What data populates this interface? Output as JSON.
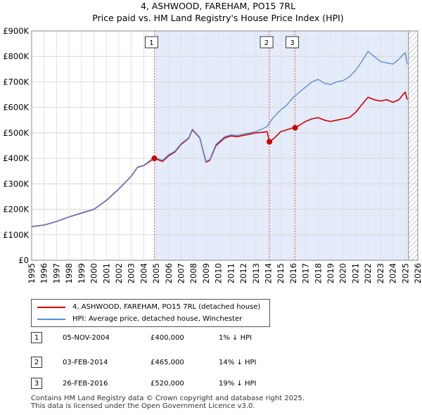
{
  "chart_data": {
    "type": "line",
    "title": "4, ASHWOOD, FAREHAM, PO15 7RL",
    "subtitle": "Price paid vs. HM Land Registry's House Price Index (HPI)",
    "x_ticks": [
      "1995",
      "1996",
      "1997",
      "1998",
      "1999",
      "2000",
      "2001",
      "2002",
      "2003",
      "2004",
      "2005",
      "2006",
      "2007",
      "2008",
      "2009",
      "2010",
      "2011",
      "2012",
      "2013",
      "2014",
      "2015",
      "2016",
      "2017",
      "2018",
      "2019",
      "2020",
      "2021",
      "2022",
      "2023",
      "2024",
      "2025",
      "2026"
    ],
    "y_ticks": [
      "£0",
      "£100K",
      "£200K",
      "£300K",
      "£400K",
      "£500K",
      "£600K",
      "£700K",
      "£800K",
      "£900K"
    ],
    "xlim": [
      1995,
      2026
    ],
    "ylim": [
      0,
      900000
    ],
    "grid": true,
    "colors": {
      "property": "#cc0000",
      "hpi": "#5b8fd6",
      "shade": "#e4ebfa",
      "future_hatch": "#999999"
    },
    "forecast_from": 2025.25,
    "series": [
      {
        "name": "4, ASHWOOD, FAREHAM, PO15 7RL (detached house)",
        "key": "property",
        "x": [
          1995.0,
          1996.0,
          1997.0,
          1998.0,
          1999.0,
          2000.0,
          2001.0,
          2002.0,
          2003.0,
          2003.5,
          2004.0,
          2004.85,
          2005.5,
          2006.0,
          2006.5,
          2007.0,
          2007.6,
          2007.9,
          2008.5,
          2009.0,
          2009.3,
          2009.8,
          2010.5,
          2011.0,
          2011.5,
          2012.0,
          2012.5,
          2013.0,
          2013.5,
          2013.9,
          2014.09,
          2014.5,
          2015.0,
          2015.5,
          2016.0,
          2016.15,
          2016.5,
          2017.0,
          2017.5,
          2018.0,
          2018.5,
          2019.0,
          2019.5,
          2020.0,
          2020.5,
          2021.0,
          2021.5,
          2022.0,
          2022.5,
          2023.0,
          2023.5,
          2024.0,
          2024.5,
          2024.8,
          2025.0,
          2025.15
        ],
        "values": [
          132000,
          138000,
          152000,
          170000,
          185000,
          200000,
          235000,
          280000,
          330000,
          365000,
          372000,
          400000,
          388000,
          410000,
          425000,
          455000,
          478000,
          512000,
          480000,
          385000,
          392000,
          450000,
          480000,
          488000,
          485000,
          490000,
          495000,
          500000,
          502000,
          505000,
          465000,
          480000,
          505000,
          512000,
          520000,
          520000,
          530000,
          545000,
          555000,
          560000,
          550000,
          545000,
          550000,
          555000,
          560000,
          580000,
          610000,
          640000,
          630000,
          625000,
          630000,
          620000,
          630000,
          650000,
          660000,
          630000
        ]
      },
      {
        "name": "HPI: Average price, detached house, Winchester",
        "key": "hpi",
        "x": [
          1995.0,
          1996.0,
          1997.0,
          1998.0,
          1999.0,
          2000.0,
          2001.0,
          2002.0,
          2003.0,
          2003.5,
          2004.0,
          2004.85,
          2005.5,
          2006.0,
          2006.5,
          2007.0,
          2007.6,
          2007.9,
          2008.5,
          2009.0,
          2009.3,
          2009.8,
          2010.5,
          2011.0,
          2011.5,
          2012.0,
          2012.5,
          2013.0,
          2013.5,
          2013.9,
          2014.09,
          2014.5,
          2015.0,
          2015.5,
          2016.0,
          2016.15,
          2016.5,
          2017.0,
          2017.5,
          2018.0,
          2018.5,
          2019.0,
          2019.5,
          2020.0,
          2020.5,
          2021.0,
          2021.5,
          2022.0,
          2022.5,
          2023.0,
          2023.5,
          2024.0,
          2024.5,
          2024.8,
          2025.0,
          2025.15
        ],
        "values": [
          133000,
          139000,
          153000,
          171000,
          186000,
          201000,
          236000,
          281000,
          331000,
          366000,
          373000,
          404000,
          392000,
          414000,
          428000,
          458000,
          480000,
          515000,
          482000,
          388000,
          395000,
          455000,
          485000,
          492000,
          490000,
          495000,
          500000,
          505000,
          515000,
          525000,
          540000,
          565000,
          590000,
          610000,
          640000,
          645000,
          660000,
          680000,
          700000,
          710000,
          695000,
          690000,
          700000,
          705000,
          720000,
          745000,
          780000,
          820000,
          800000,
          780000,
          775000,
          770000,
          790000,
          805000,
          815000,
          770000
        ]
      }
    ],
    "sales": [
      {
        "num": "1",
        "x": 2004.85,
        "value": 400000
      },
      {
        "num": "2",
        "x": 2014.09,
        "value": 465000
      },
      {
        "num": "3",
        "x": 2016.15,
        "value": 520000
      }
    ]
  },
  "legend": {
    "property_label": "4, ASHWOOD, FAREHAM, PO15 7RL (detached house)",
    "hpi_label": "HPI: Average price, detached house, Winchester"
  },
  "sales_table": [
    {
      "num": "1",
      "date": "05-NOV-2004",
      "price": "£400,000",
      "hpi": "1% ↓ HPI"
    },
    {
      "num": "2",
      "date": "03-FEB-2014",
      "price": "£465,000",
      "hpi": "14% ↓ HPI"
    },
    {
      "num": "3",
      "date": "26-FEB-2016",
      "price": "£520,000",
      "hpi": "19% ↓ HPI"
    }
  ],
  "footer": {
    "line1": "Contains HM Land Registry data © Crown copyright and database right 2025.",
    "line2": "This data is licensed under the Open Government Licence v3.0."
  }
}
